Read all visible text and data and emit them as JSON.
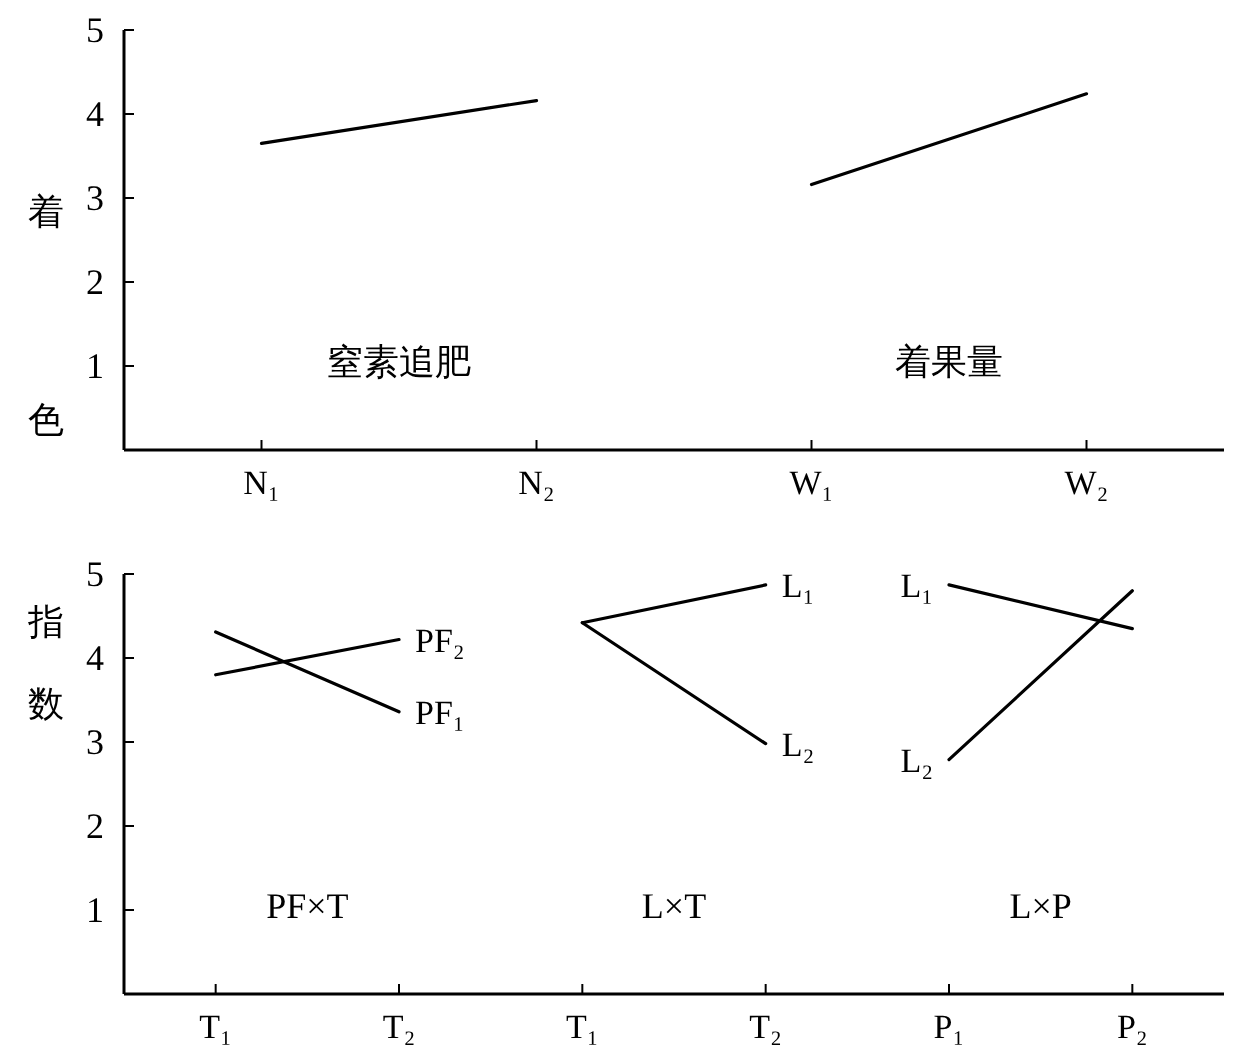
{
  "chart_data": [
    {
      "type": "line",
      "ylabel": "着色",
      "categories": [
        "N₁",
        "N₂",
        "W₁",
        "W₂"
      ],
      "ylim": [
        0,
        5
      ],
      "yticks": [
        1,
        2,
        3,
        4,
        5
      ],
      "series": [
        {
          "color": "#000000",
          "values": [
            3.65,
            4.16,
            null,
            null
          ]
        },
        {
          "color": "#000000",
          "values": [
            null,
            null,
            3.16,
            4.24
          ]
        }
      ],
      "annotations": [
        "窒素追肥",
        "着果量"
      ]
    },
    {
      "type": "line",
      "ylabel": "指数",
      "categories": [
        "T₁",
        "T₂",
        "T₁",
        "T₂",
        "P₁",
        "P₂"
      ],
      "ylim": [
        0,
        5
      ],
      "yticks": [
        1,
        2,
        3,
        4,
        5
      ],
      "series": [
        {
          "name": "PF₁",
          "color": "#000000",
          "values": [
            4.31,
            3.36,
            null,
            null,
            null,
            null
          ]
        },
        {
          "name": "PF₂",
          "color": "#000000",
          "values": [
            3.8,
            4.22,
            null,
            null,
            null,
            null
          ]
        },
        {
          "name": "L₁",
          "color": "#000000",
          "values": [
            null,
            null,
            4.42,
            4.87,
            null,
            null
          ]
        },
        {
          "name": "L₂",
          "color": "#000000",
          "values": [
            null,
            null,
            4.42,
            2.98,
            null,
            null
          ]
        },
        {
          "name": "L₁",
          "color": "#000000",
          "values": [
            null,
            null,
            null,
            null,
            4.87,
            4.35
          ]
        },
        {
          "name": "L₂",
          "color": "#000000",
          "values": [
            null,
            null,
            null,
            null,
            2.79,
            4.8
          ]
        }
      ],
      "annotations": [
        "PF×T",
        "L×T",
        "L×P"
      ]
    }
  ]
}
